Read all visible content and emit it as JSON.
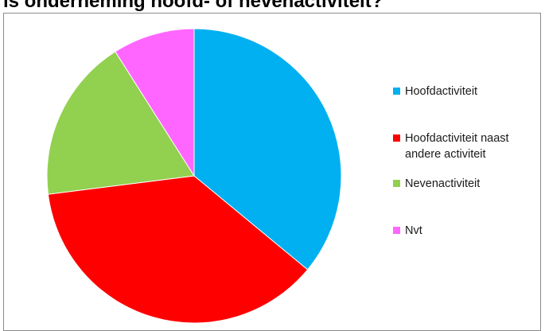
{
  "title": "is onderneming hoofd- of nevenactiviteit?",
  "chart_data": {
    "type": "pie",
    "categories": [
      "Hoofdactiviteit",
      "Hoofdactiviteit naast andere activiteit",
      "Nevenactiviteit",
      "Nvt"
    ],
    "values": [
      36,
      37,
      18,
      9
    ],
    "colors": [
      "#00b0f0",
      "#ff0000",
      "#92d050",
      "#ff66ff"
    ],
    "legend": "right"
  }
}
